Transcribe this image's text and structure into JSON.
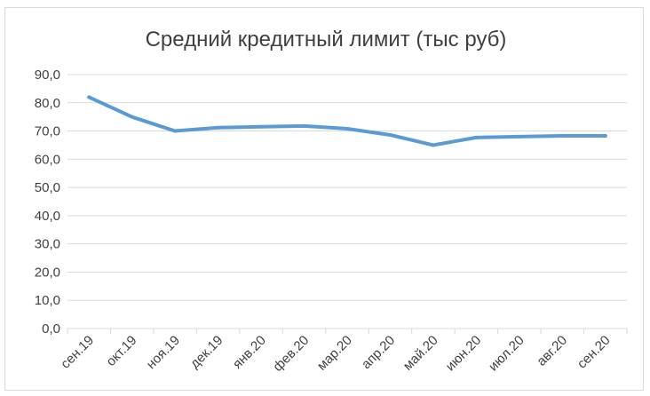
{
  "chart_data": {
    "type": "line",
    "title": "Средний кредитный лимит (тыс руб)",
    "xlabel": "",
    "ylabel": "",
    "ylim": [
      0,
      90
    ],
    "y_tick_labels": [
      "0,0",
      "10,0",
      "20,0",
      "30,0",
      "40,0",
      "50,0",
      "60,0",
      "70,0",
      "80,0",
      "90,0"
    ],
    "categories": [
      "сен.19",
      "окт.19",
      "ноя.19",
      "дек.19",
      "янв.20",
      "фев.20",
      "мар.20",
      "апр.20",
      "май.20",
      "июн.20",
      "июл.20",
      "авг.20",
      "сен.20"
    ],
    "series": [
      {
        "color": "#5b9bd5",
        "values": [
          82.0,
          75.0,
          70.0,
          71.2,
          71.5,
          71.8,
          70.8,
          68.6,
          65.0,
          67.7,
          68.0,
          68.3,
          68.3
        ]
      }
    ],
    "grid": true,
    "legend": "none"
  }
}
